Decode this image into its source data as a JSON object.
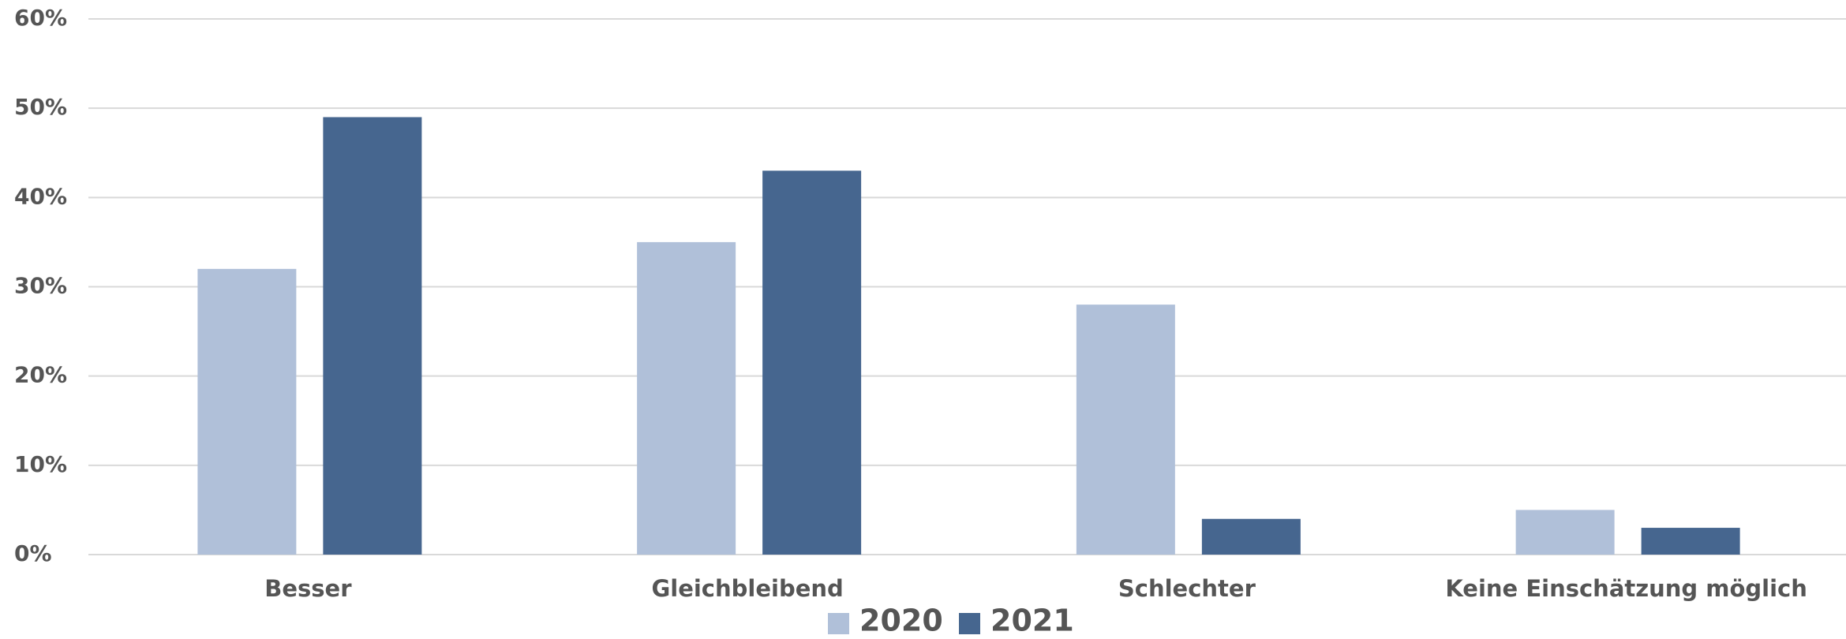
{
  "chart_data": {
    "type": "bar",
    "categories": [
      "Besser",
      "Gleichbleibend",
      "Schlechter",
      "Keine Einschätzung möglich"
    ],
    "series": [
      {
        "name": "2020",
        "color": "#b0c0d9",
        "values": [
          32,
          35,
          28,
          5
        ]
      },
      {
        "name": "2021",
        "color": "#46668f",
        "values": [
          49,
          43,
          4,
          3
        ]
      }
    ],
    "ylim": [
      0,
      60
    ],
    "yticks": [
      {
        "value": 0,
        "label": "0%"
      },
      {
        "value": 10,
        "label": "10%"
      },
      {
        "value": 20,
        "label": "20%"
      },
      {
        "value": 30,
        "label": "30%"
      },
      {
        "value": 40,
        "label": "40%"
      },
      {
        "value": 50,
        "label": "50%"
      },
      {
        "value": 60,
        "label": "60%"
      }
    ],
    "grid": true
  }
}
